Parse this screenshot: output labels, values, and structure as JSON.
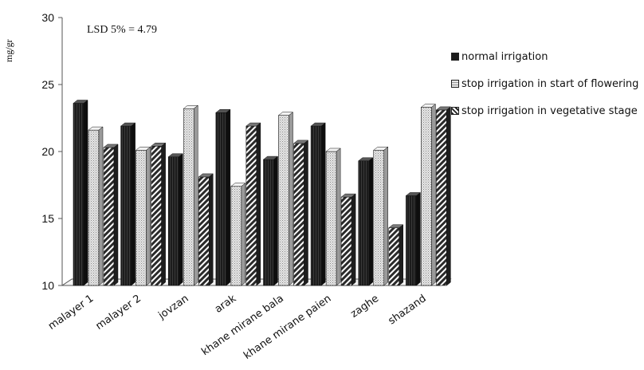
{
  "chart_data": {
    "type": "bar",
    "ylabel": "mg/gr",
    "annotation": "LSD 5% = 4.79",
    "ylim": [
      10,
      30
    ],
    "yticks": [
      "10",
      "15",
      "20",
      "25",
      "30"
    ],
    "categories": [
      "malayer 1",
      "malayer 2",
      "jovzan",
      "arak",
      "khane mirane bala",
      "khane mirane paien",
      "zaghe",
      "shazand"
    ],
    "series": [
      {
        "name": "normal irrigation",
        "color": "#1a1a1a",
        "pattern": "solid-dark",
        "values": [
          23.6,
          21.9,
          19.6,
          22.9,
          19.4,
          21.9,
          19.3,
          16.7
        ]
      },
      {
        "name": "stop irrigation in start of flowering",
        "color": "#d8d8d8",
        "pattern": "dotted-light",
        "values": [
          21.6,
          20.1,
          23.2,
          17.4,
          22.7,
          20.0,
          20.1,
          23.3
        ]
      },
      {
        "name": "stop irrigation in vegetative stage",
        "color": "#444444",
        "pattern": "diagonal-stripes",
        "values": [
          20.3,
          20.4,
          18.1,
          21.9,
          20.6,
          16.6,
          14.3,
          23.1
        ]
      }
    ],
    "grid": false,
    "legend_position": "right"
  }
}
